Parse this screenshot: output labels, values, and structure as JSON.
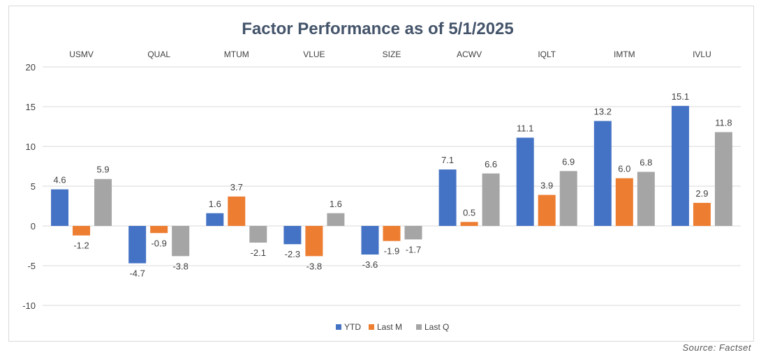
{
  "source_text": "Source: Factset",
  "colors": {
    "YTD": "#4472c4",
    "Last M": "#ed7d31",
    "Last Q": "#a5a5a5",
    "grid": "#d9d9d9",
    "title": "#44546a"
  },
  "chart_data": {
    "type": "bar",
    "title": "Factor Performance as of 5/1/2025",
    "xlabel": "",
    "ylabel": "",
    "categories": [
      "USMV",
      "QUAL",
      "MTUM",
      "VLUE",
      "SIZE",
      "ACWV",
      "IQLT",
      "IMTM",
      "IVLU"
    ],
    "series": [
      {
        "name": "YTD",
        "values": [
          4.6,
          -4.7,
          1.6,
          -2.3,
          -3.6,
          7.1,
          11.1,
          13.2,
          15.1
        ]
      },
      {
        "name": "Last M",
        "values": [
          -1.2,
          -0.9,
          3.7,
          -3.8,
          -1.9,
          0.5,
          3.9,
          6.0,
          2.9
        ]
      },
      {
        "name": "Last Q",
        "values": [
          5.9,
          -3.8,
          -2.1,
          1.6,
          -1.7,
          6.6,
          6.9,
          6.8,
          11.8
        ]
      }
    ],
    "ylim": [
      -10,
      20
    ],
    "yticks": [
      20,
      15,
      10,
      5,
      0,
      -5,
      -10
    ],
    "grid": true,
    "legend": "bottom",
    "category_labels_position": "top"
  }
}
